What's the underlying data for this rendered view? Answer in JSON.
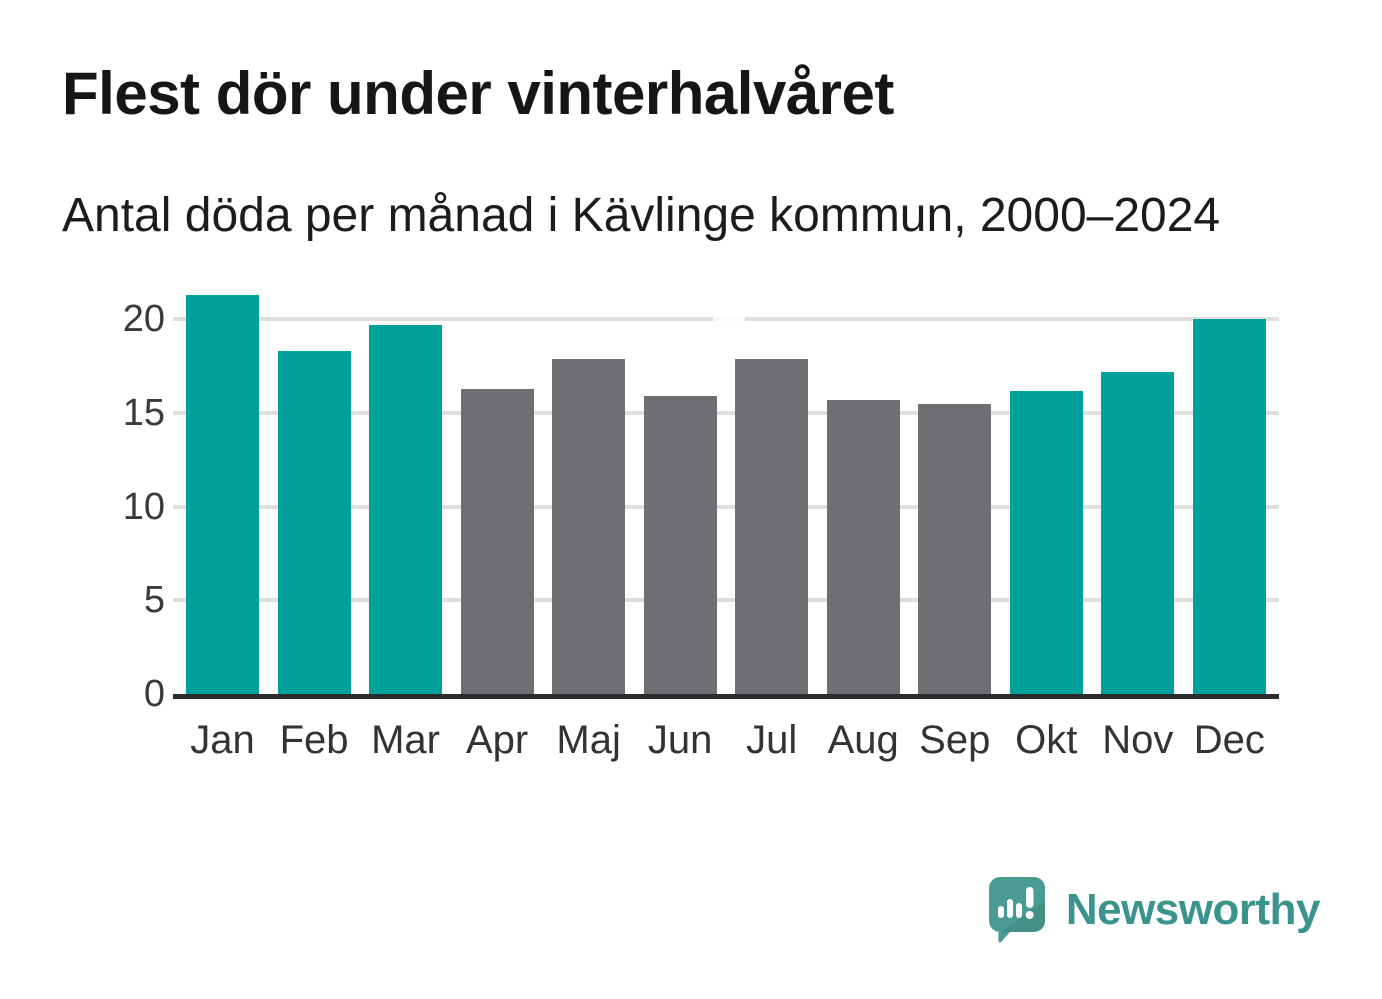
{
  "header": {
    "title": "Flest dör under vinterhalvåret",
    "subtitle": "Antal döda per månad i Kävlinge kommun, 2000–2024"
  },
  "chart_data": {
    "type": "bar",
    "title": "Flest dör under vinterhalvåret",
    "subtitle": "Antal döda per månad i Kävlinge kommun, 2000–2024",
    "categories": [
      "Jan",
      "Feb",
      "Mar",
      "Apr",
      "Maj",
      "Jun",
      "Jul",
      "Aug",
      "Sep",
      "Okt",
      "Nov",
      "Dec"
    ],
    "values": [
      21.3,
      18.3,
      19.7,
      16.3,
      17.9,
      15.9,
      17.9,
      15.7,
      15.5,
      16.2,
      17.2,
      20.0
    ],
    "bar_color_keys": [
      "teal",
      "teal",
      "teal",
      "gray",
      "gray",
      "gray",
      "gray",
      "gray",
      "gray",
      "teal",
      "teal",
      "teal"
    ],
    "colors": {
      "teal": "#00a09b",
      "gray": "#6e6e73",
      "gridline": "#dedede",
      "axis_line": "#2b2b2b",
      "tick_text": "#3a3a3a"
    },
    "highlight_meaning": "winter half-year months (Jan–Mar, Okt–Dec) in teal; Apr–Sep in gray",
    "xlabel": "",
    "ylabel": "",
    "ylim": [
      0,
      22
    ],
    "yticks": [
      0,
      5,
      10,
      15,
      20
    ],
    "grid": "horizontal",
    "legend": "none"
  },
  "footer": {
    "brand": "Newsworthy",
    "brand_color": "#3b938d",
    "logo_bubble_color": "#4a9b94"
  }
}
